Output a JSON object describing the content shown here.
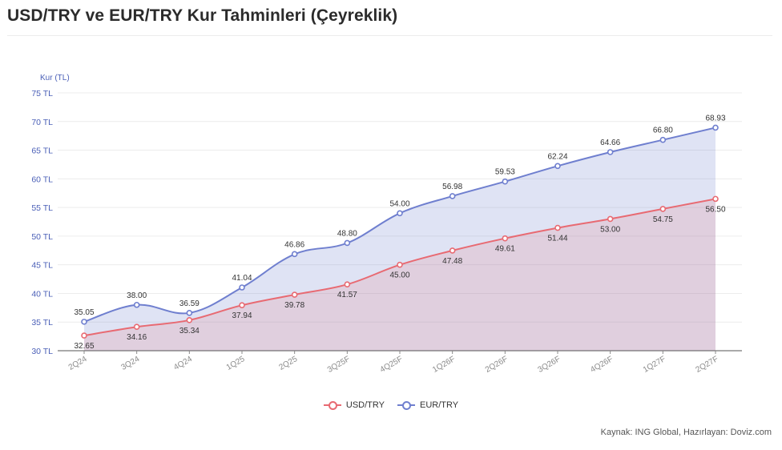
{
  "title": "USD/TRY ve EUR/TRY Kur Tahminleri (Çeyreklik)",
  "source": "Kaynak: ING Global, Hazırlayan: Doviz.com",
  "colors": {
    "usd": "#e86a72",
    "eur": "#6f7fcf",
    "axis": "#4a5fb7"
  },
  "chart_data": {
    "type": "area",
    "title": "USD/TRY ve EUR/TRY Kur Tahminleri (Çeyreklik)",
    "ylabel": "Kur (TL)",
    "xlabel": "",
    "ylim": [
      30,
      75
    ],
    "yticks": [
      "30 TL",
      "35 TL",
      "40 TL",
      "45 TL",
      "50 TL",
      "55 TL",
      "60 TL",
      "65 TL",
      "70 TL",
      "75 TL"
    ],
    "yticks_values": [
      30,
      35,
      40,
      45,
      50,
      55,
      60,
      65,
      70,
      75
    ],
    "grid": true,
    "legend_placement": "bottom-center",
    "categories": [
      "2Q24",
      "3Q24",
      "4Q24",
      "1Q25",
      "2Q25",
      "3Q25F",
      "4Q25F",
      "1Q26F",
      "2Q26F",
      "3Q26F",
      "4Q26F",
      "1Q27F",
      "2Q27F"
    ],
    "series": [
      {
        "name": "USD/TRY",
        "values": [
          32.65,
          34.16,
          35.34,
          37.94,
          39.78,
          41.57,
          45.0,
          47.48,
          49.61,
          51.44,
          53.0,
          54.75,
          56.5
        ],
        "labels": [
          "32.65",
          "34.16",
          "35.34",
          "37.94",
          "39.78",
          "41.57",
          "45.00",
          "47.48",
          "49.61",
          "51.44",
          "53.00",
          "54.75",
          "56.50"
        ]
      },
      {
        "name": "EUR/TRY",
        "values": [
          35.05,
          38.0,
          36.59,
          41.04,
          46.86,
          48.8,
          54.0,
          56.98,
          59.53,
          62.24,
          64.66,
          66.8,
          68.93
        ],
        "labels": [
          "35.05",
          "38.00",
          "36.59",
          "41.04",
          "46.86",
          "48.80",
          "54.00",
          "56.98",
          "59.53",
          "62.24",
          "64.66",
          "66.80",
          "68.93"
        ]
      }
    ]
  }
}
